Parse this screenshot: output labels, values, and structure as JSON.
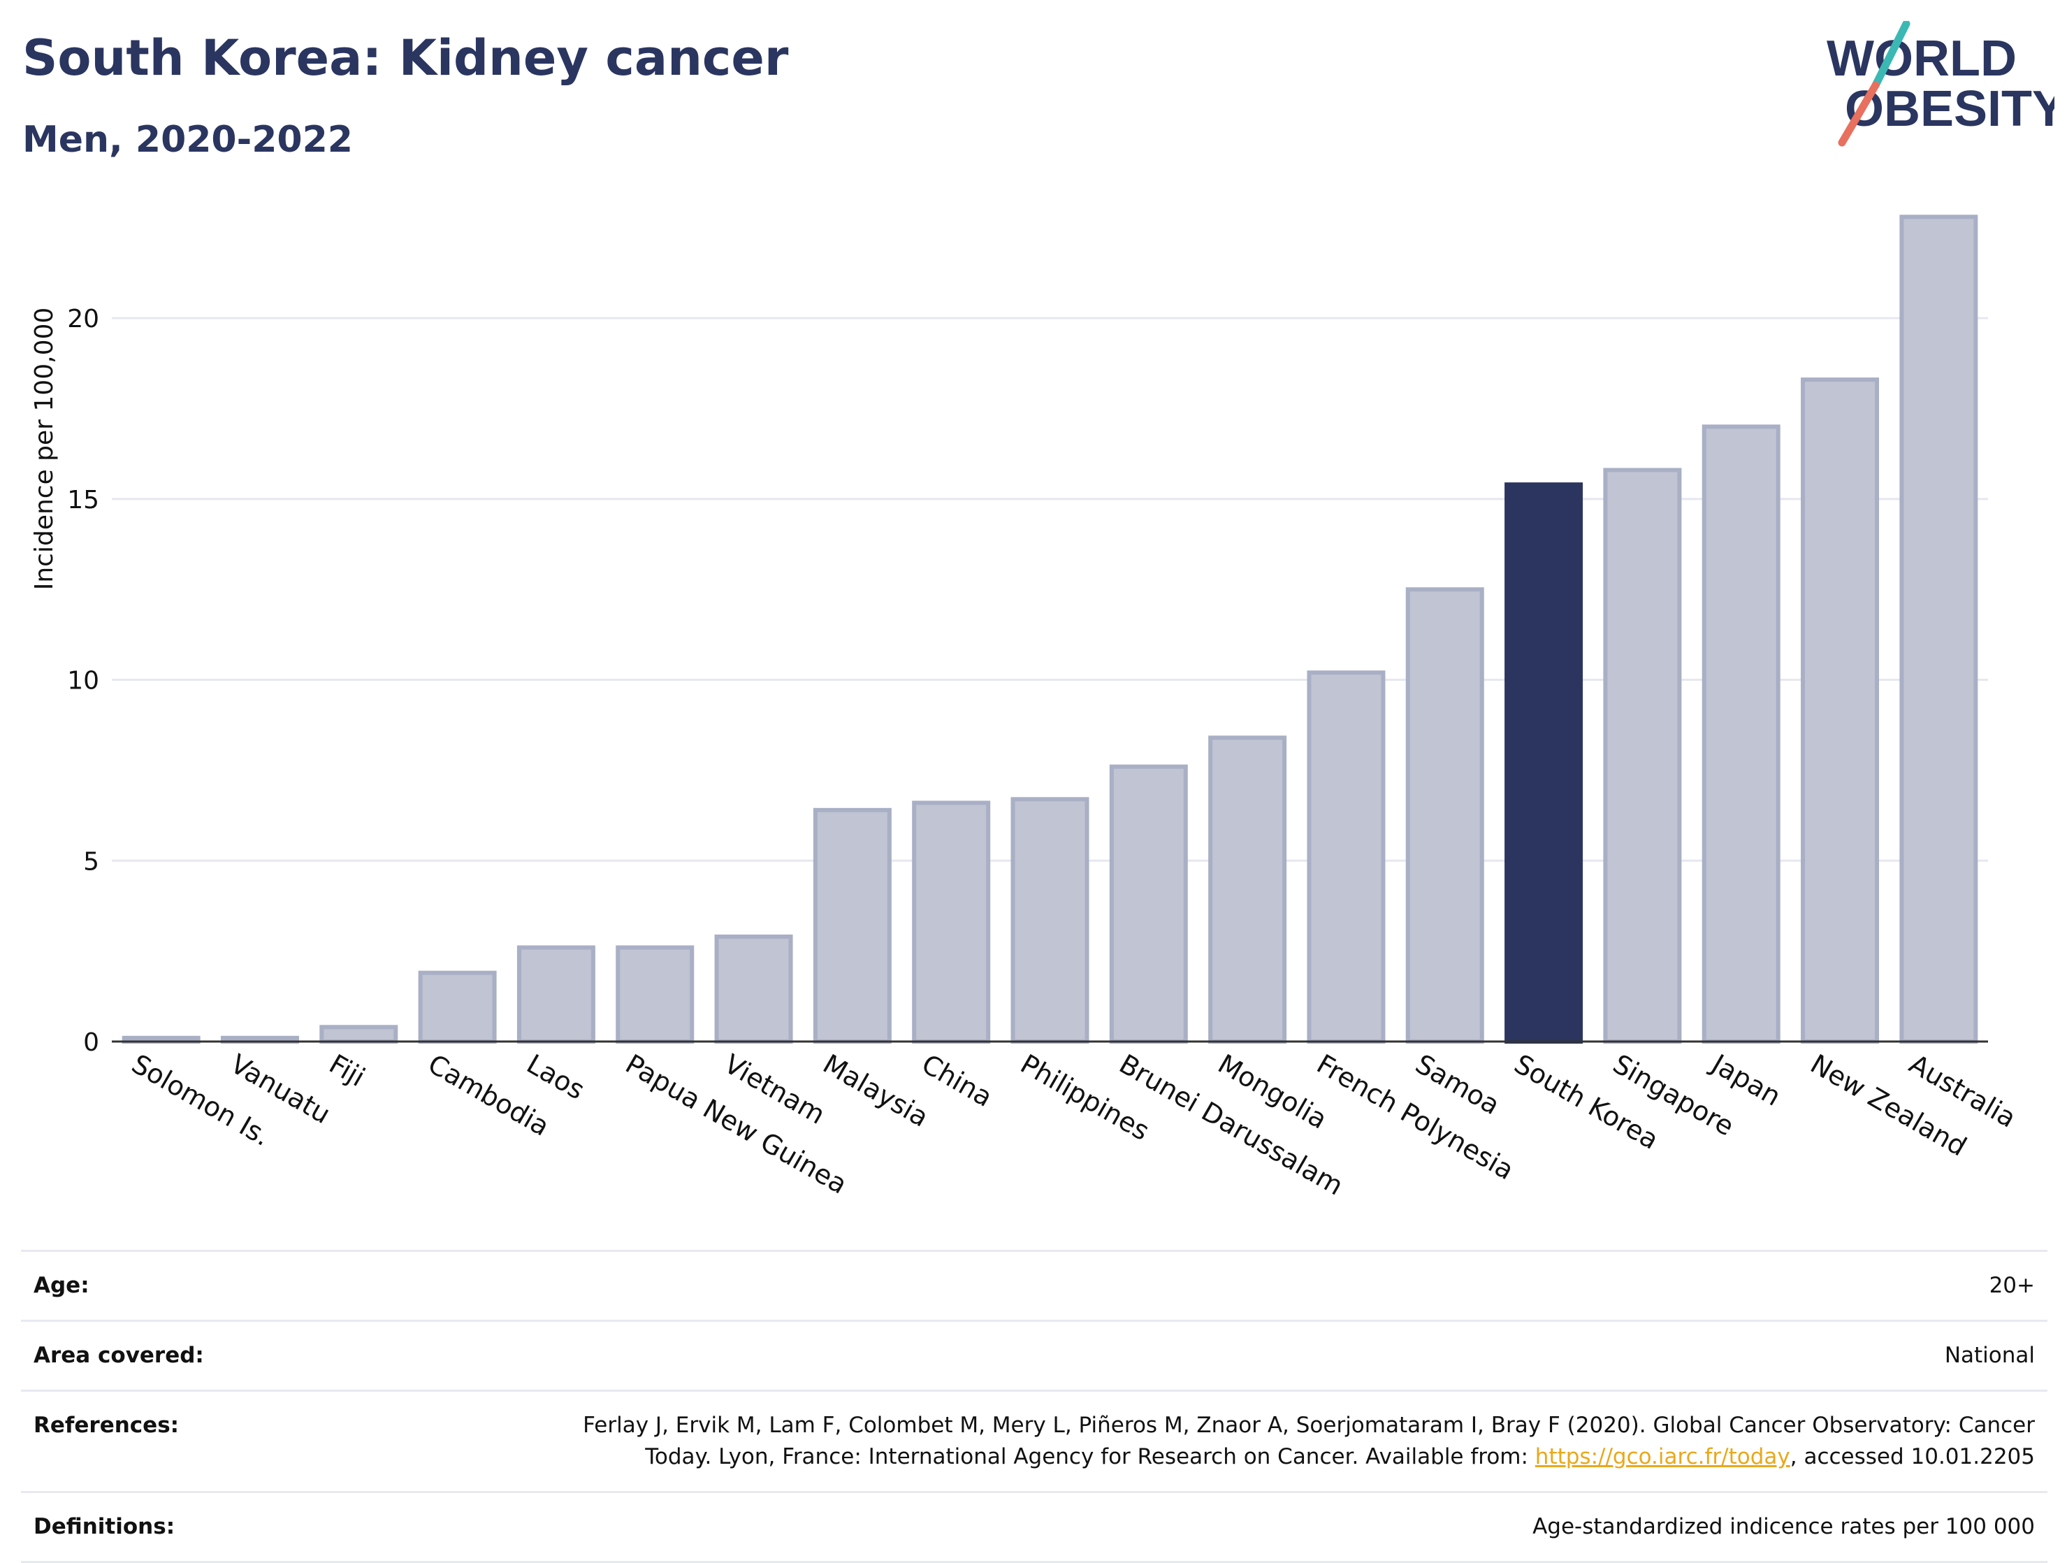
{
  "header": {
    "title": "South Korea: Kidney cancer",
    "subtitle": "Men, 2020-2022"
  },
  "logo": {
    "line1": "WORLD",
    "line2": "OBESITY",
    "name": "world-obesity-logo"
  },
  "chart_data": {
    "type": "bar",
    "ylabel": "Incidence per 100,000",
    "xlabel": "",
    "ylim": [
      0,
      23.5
    ],
    "yticks": [
      0,
      5,
      10,
      15,
      20
    ],
    "grid": true,
    "highlight": "South Korea",
    "colors": {
      "bar": "#c0c4d3",
      "bar_edge": "#a9afc5",
      "highlight": "#2b3560"
    },
    "categories": [
      "Solomon Is.",
      "Vanuatu",
      "Fiji",
      "Cambodia",
      "Laos",
      "Papua New Guinea",
      "Vietnam",
      "Malaysia",
      "China",
      "Philippines",
      "Brunei Darussalam",
      "Mongolia",
      "French Polynesia",
      "Samoa",
      "South Korea",
      "Singapore",
      "Japan",
      "New Zealand",
      "Australia"
    ],
    "values": [
      0.1,
      0.1,
      0.4,
      1.9,
      2.6,
      2.6,
      2.9,
      6.4,
      6.6,
      6.7,
      7.6,
      8.4,
      10.2,
      12.5,
      15.4,
      15.8,
      17.0,
      18.3,
      22.8
    ]
  },
  "info": [
    {
      "label": "Age:",
      "value": "20+"
    },
    {
      "label": "Area covered:",
      "value": "National"
    },
    {
      "label": "References:",
      "value_line1": "Ferlay J, Ervik M, Lam F, Colombet M, Mery L, Piñeros M, Znaor A, Soerjomataram I, Bray F (2020). Global Cancer Observatory: Cancer",
      "value_line2_pre": "Today. Lyon, France: International Agency for Research on Cancer. Available from: ",
      "link": "https://gco.iarc.fr/today",
      "value_line2_post": ", accessed 10.01.2205"
    },
    {
      "label": "Definitions:",
      "value": "Age-standardized indicence rates per 100 000"
    }
  ]
}
